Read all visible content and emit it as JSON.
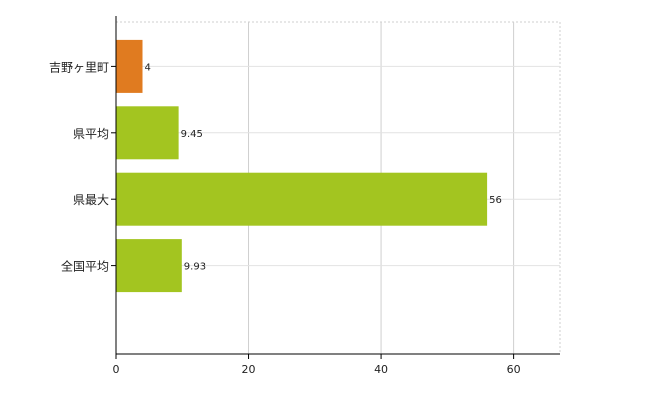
{
  "chart_data": {
    "type": "bar",
    "orientation": "horizontal",
    "categories": [
      "吉野ヶ里町",
      "県平均",
      "県最大",
      "全国平均"
    ],
    "values": [
      4,
      9.45,
      56,
      9.93
    ],
    "value_labels": [
      "4",
      "9.45",
      "56",
      "9.93"
    ],
    "colors": [
      "#e07b20",
      "#a3c520",
      "#a3c520",
      "#a3c520"
    ],
    "xlim": [
      0,
      67
    ],
    "xticks": [
      0,
      20,
      40,
      60
    ],
    "tick_labels": [
      "0",
      "20",
      "40",
      "60"
    ],
    "grid": true,
    "legend": "none"
  }
}
